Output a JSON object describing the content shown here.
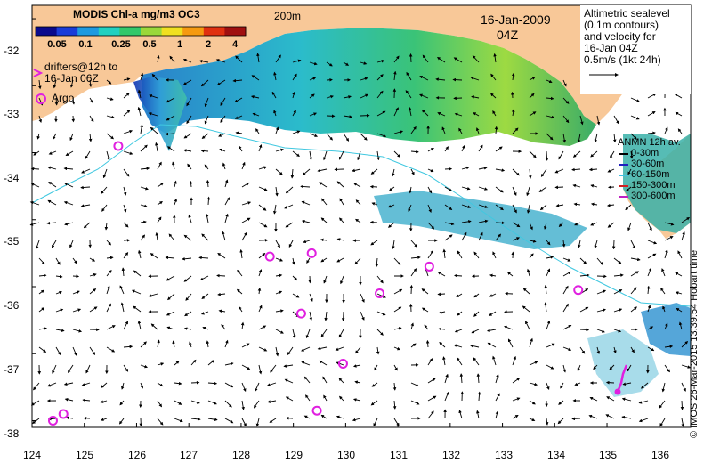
{
  "title": "MODIS Chl-a mg/m3 OC3",
  "depth_label": "200m",
  "date": "16-Jan-2009",
  "time": "04Z",
  "colorbar": {
    "labels": [
      "0.05",
      "0.1",
      "0.25",
      "0.5",
      "1",
      "2",
      "4"
    ],
    "values": [
      0.05,
      0.1,
      0.25,
      0.5,
      1,
      2,
      4
    ],
    "colors": [
      "#0a0a8c",
      "#1a3cd8",
      "#1e9ae0",
      "#22d0c0",
      "#34c86a",
      "#9ad83a",
      "#f0e020",
      "#f59a10",
      "#e03010",
      "#a01010"
    ]
  },
  "drifters_note": [
    "drifters@12h to",
    "16-Jan 06Z"
  ],
  "argo_label": "Argo",
  "altimetry_note": [
    "Altimetric sealevel",
    "(0.1m contours)",
    "and velocity for",
    "16-Jan 04Z",
    "0.5m/s (1kt 24h)"
  ],
  "anmn_legend": {
    "title": "ANMN 12h av.",
    "items": [
      {
        "label": "0-30m",
        "color": "#000000"
      },
      {
        "label": "30-60m",
        "color": "#2020c0"
      },
      {
        "label": "60-150m",
        "color": "#40c0e0"
      },
      {
        "label": "150-300m",
        "color": "#d02020"
      },
      {
        "label": "300-600m",
        "color": "#c020c0"
      }
    ]
  },
  "credit": "© IMOS 26-Mar-2015 13:39:54 Hobart time",
  "axes": {
    "x_ticks": [
      "124",
      "125",
      "126",
      "127",
      "128",
      "129",
      "130",
      "131",
      "132",
      "133",
      "134",
      "135",
      "136"
    ],
    "y_ticks": [
      "-32",
      "-33",
      "-34",
      "-35",
      "-36",
      "-37",
      "-38"
    ]
  },
  "map_data": {
    "lon_range": [
      124,
      136.6
    ],
    "lat_range": [
      -38.1,
      -31.8
    ],
    "argo_floats": [
      {
        "lon": 125.65,
        "lat": -33.9
      },
      {
        "lon": 128.55,
        "lat": -35.55
      },
      {
        "lon": 129.35,
        "lat": -35.5
      },
      {
        "lon": 131.6,
        "lat": -35.7
      },
      {
        "lon": 130.65,
        "lat": -36.1
      },
      {
        "lon": 129.15,
        "lat": -36.4
      },
      {
        "lon": 134.45,
        "lat": -36.05
      },
      {
        "lon": 129.95,
        "lat": -37.15
      },
      {
        "lon": 129.45,
        "lat": -37.85
      },
      {
        "lon": 124.6,
        "lat": -37.9
      },
      {
        "lon": 124.4,
        "lat": -38.0
      }
    ],
    "colors": {
      "land": "#f8c898",
      "ocean": "#ffffff",
      "contour": "#40c8e0",
      "drifter": "#e020e0",
      "argo": "#e020e0"
    }
  }
}
